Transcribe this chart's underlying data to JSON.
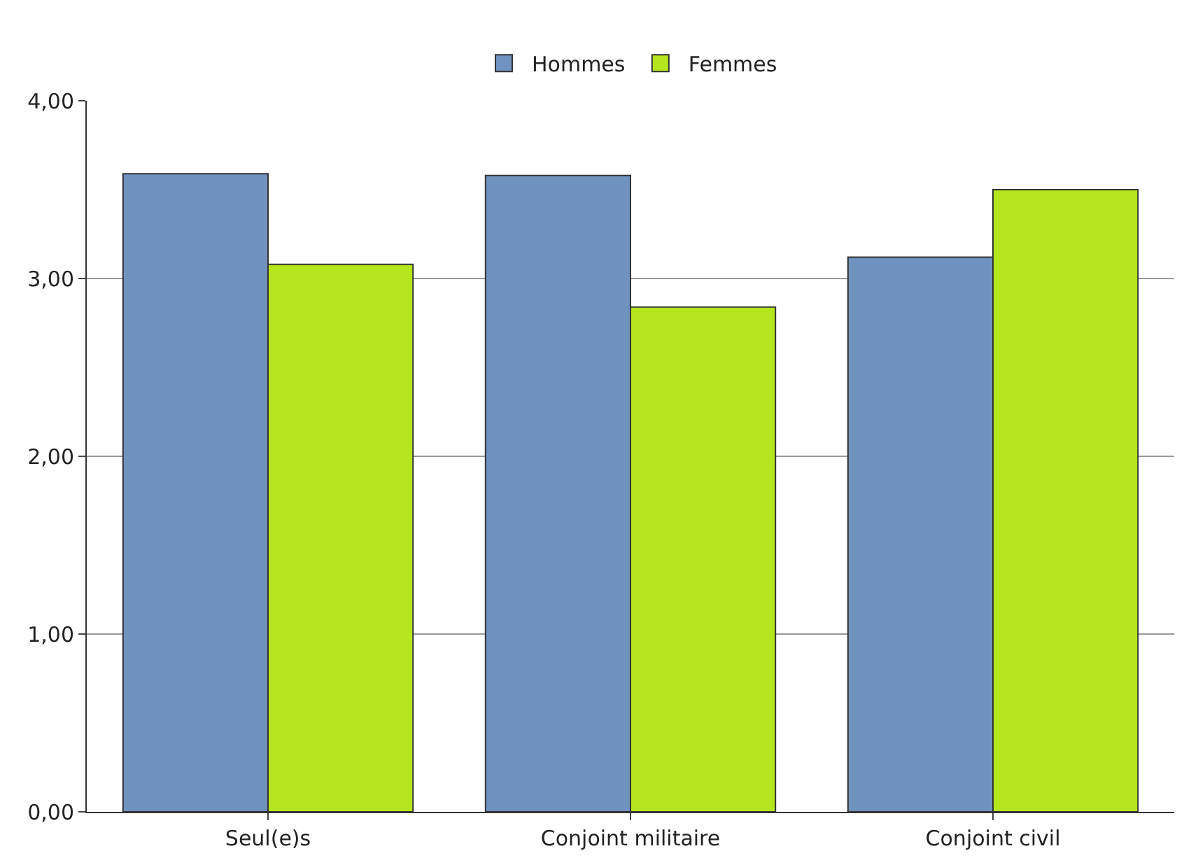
{
  "chart_data": {
    "type": "bar",
    "categories": [
      "Seul(e)s",
      "Conjoint militaire",
      "Conjoint civil"
    ],
    "series": [
      {
        "name": "Hommes",
        "color": "#7092be",
        "values": [
          3.59,
          3.58,
          3.12
        ]
      },
      {
        "name": "Femmes",
        "color": "#b5e61d",
        "values": [
          3.08,
          2.84,
          3.5
        ]
      }
    ],
    "ylim": [
      0,
      4
    ],
    "yticks": [
      {
        "value": 0,
        "label": "0,00"
      },
      {
        "value": 1,
        "label": "1,00"
      },
      {
        "value": 2,
        "label": "2,00"
      },
      {
        "value": 3,
        "label": "3,00"
      },
      {
        "value": 4,
        "label": "4,00"
      }
    ],
    "grid": "y",
    "legend": "top"
  }
}
